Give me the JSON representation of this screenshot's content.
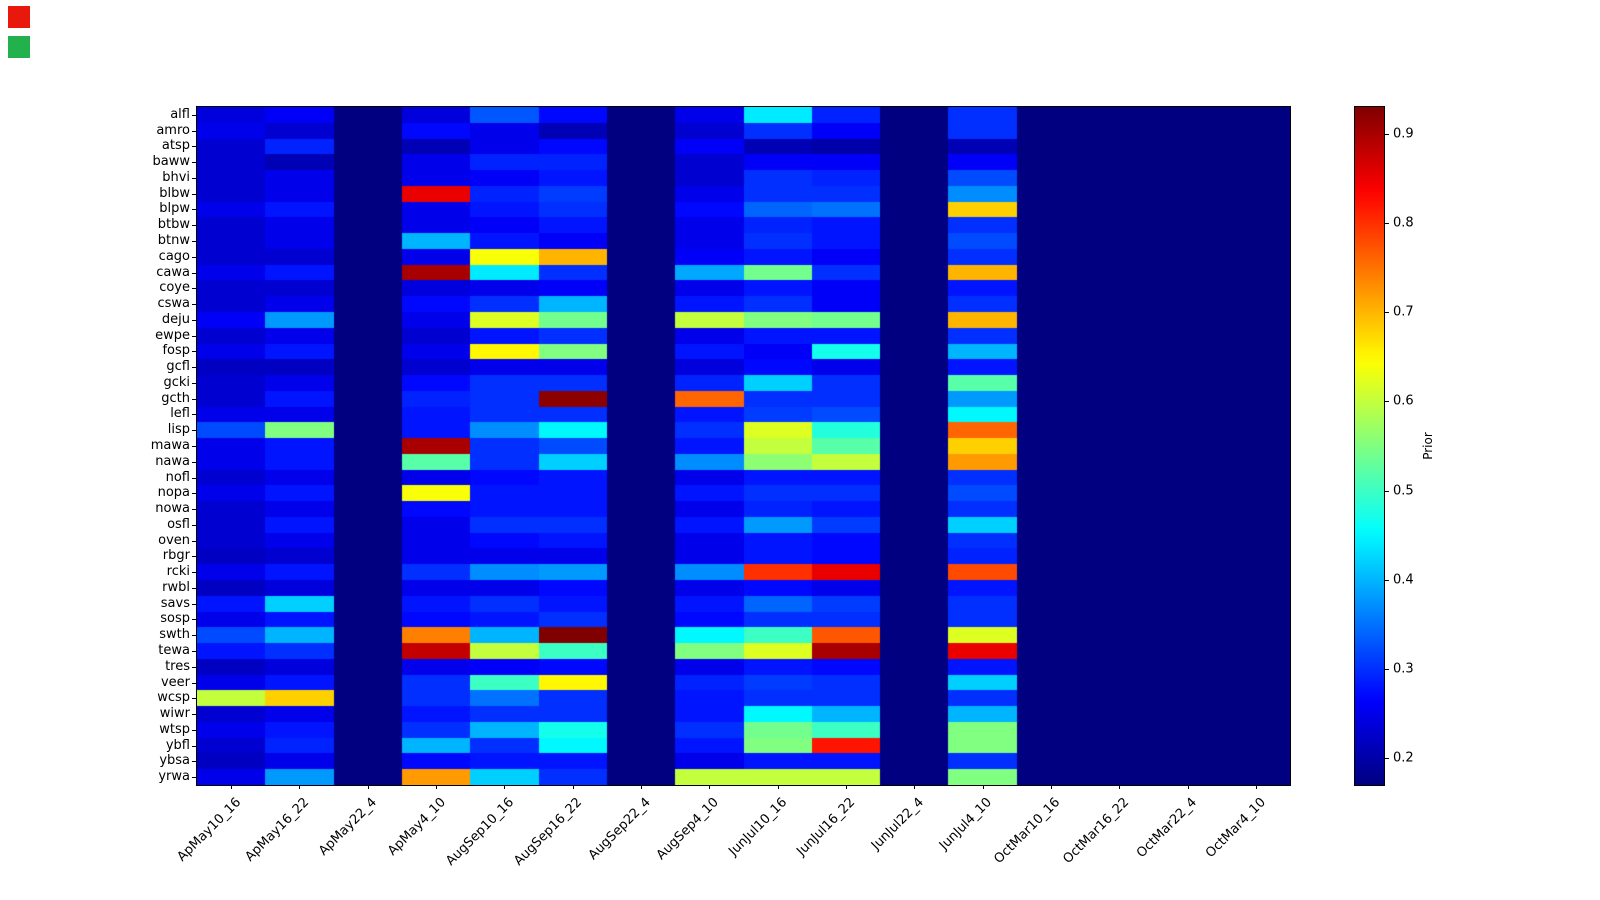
{
  "markers": {
    "red_color": "#e8180c",
    "green_color": "#22b14c"
  },
  "chart_data": {
    "type": "heatmap",
    "title": "",
    "colormap": "jet",
    "vmin": 0.17,
    "vmax": 0.93,
    "colorbar_label": "Prior",
    "colorbar_ticks": [
      0.2,
      0.3,
      0.4,
      0.5,
      0.6,
      0.7,
      0.8,
      0.9
    ],
    "columns": [
      "ApMay10_16",
      "ApMay16_22",
      "ApMay22_4",
      "ApMay4_10",
      "AugSep10_16",
      "AugSep16_22",
      "AugSep22_4",
      "AugSep4_10",
      "JunJul10_16",
      "JunJul16_22",
      "JunJul22_4",
      "JunJul4_10",
      "OctMar10_16",
      "OctMar16_22",
      "OctMar22_4",
      "OctMar4_10"
    ],
    "rows": [
      "alfl",
      "amro",
      "atsp",
      "baww",
      "bhvi",
      "blbw",
      "blpw",
      "btbw",
      "btnw",
      "cago",
      "cawa",
      "coye",
      "cswa",
      "deju",
      "ewpe",
      "fosp",
      "gcfl",
      "gcki",
      "gcth",
      "lefl",
      "lisp",
      "mawa",
      "nawa",
      "nofl",
      "nopa",
      "nowa",
      "osfl",
      "oven",
      "rbgr",
      "rcki",
      "rwbl",
      "savs",
      "sosp",
      "swth",
      "tewa",
      "tres",
      "veer",
      "wcsp",
      "wiwr",
      "wtsp",
      "ybfl",
      "ybsa",
      "yrwa"
    ],
    "values": [
      [
        0.24,
        0.26,
        0.17,
        0.24,
        0.33,
        0.27,
        0.17,
        0.25,
        0.44,
        0.29,
        0.17,
        0.3,
        0.17,
        0.17,
        0.17,
        0.17
      ],
      [
        0.25,
        0.23,
        0.17,
        0.27,
        0.25,
        0.21,
        0.17,
        0.23,
        0.3,
        0.26,
        0.17,
        0.3,
        0.17,
        0.17,
        0.17,
        0.17
      ],
      [
        0.23,
        0.29,
        0.17,
        0.21,
        0.25,
        0.27,
        0.17,
        0.26,
        0.21,
        0.2,
        0.17,
        0.21,
        0.17,
        0.17,
        0.17,
        0.17
      ],
      [
        0.23,
        0.21,
        0.17,
        0.25,
        0.29,
        0.29,
        0.17,
        0.23,
        0.26,
        0.26,
        0.17,
        0.26,
        0.17,
        0.17,
        0.17,
        0.17
      ],
      [
        0.23,
        0.25,
        0.17,
        0.25,
        0.26,
        0.28,
        0.17,
        0.23,
        0.3,
        0.29,
        0.17,
        0.32,
        0.17,
        0.17,
        0.17,
        0.17
      ],
      [
        0.23,
        0.25,
        0.17,
        0.85,
        0.29,
        0.31,
        0.17,
        0.25,
        0.3,
        0.3,
        0.17,
        0.37,
        0.17,
        0.17,
        0.17,
        0.17
      ],
      [
        0.25,
        0.28,
        0.17,
        0.25,
        0.28,
        0.3,
        0.17,
        0.27,
        0.34,
        0.35,
        0.17,
        0.68,
        0.17,
        0.17,
        0.17,
        0.17
      ],
      [
        0.23,
        0.25,
        0.17,
        0.25,
        0.26,
        0.28,
        0.17,
        0.25,
        0.29,
        0.28,
        0.17,
        0.3,
        0.17,
        0.17,
        0.17,
        0.17
      ],
      [
        0.23,
        0.25,
        0.17,
        0.4,
        0.28,
        0.26,
        0.17,
        0.25,
        0.3,
        0.28,
        0.17,
        0.32,
        0.17,
        0.17,
        0.17,
        0.17
      ],
      [
        0.23,
        0.23,
        0.17,
        0.25,
        0.64,
        0.7,
        0.17,
        0.26,
        0.28,
        0.26,
        0.17,
        0.3,
        0.17,
        0.17,
        0.17,
        0.17
      ],
      [
        0.25,
        0.28,
        0.17,
        0.9,
        0.44,
        0.3,
        0.17,
        0.39,
        0.54,
        0.3,
        0.17,
        0.7,
        0.17,
        0.17,
        0.17,
        0.17
      ],
      [
        0.23,
        0.23,
        0.17,
        0.24,
        0.25,
        0.26,
        0.17,
        0.25,
        0.28,
        0.26,
        0.17,
        0.28,
        0.17,
        0.17,
        0.17,
        0.17
      ],
      [
        0.23,
        0.25,
        0.17,
        0.27,
        0.3,
        0.4,
        0.17,
        0.28,
        0.3,
        0.26,
        0.17,
        0.3,
        0.17,
        0.17,
        0.17,
        0.17
      ],
      [
        0.26,
        0.38,
        0.17,
        0.25,
        0.62,
        0.54,
        0.17,
        0.6,
        0.55,
        0.54,
        0.17,
        0.7,
        0.17,
        0.17,
        0.17,
        0.17
      ],
      [
        0.23,
        0.25,
        0.17,
        0.23,
        0.28,
        0.3,
        0.17,
        0.25,
        0.28,
        0.28,
        0.17,
        0.3,
        0.17,
        0.17,
        0.17,
        0.17
      ],
      [
        0.25,
        0.28,
        0.17,
        0.25,
        0.65,
        0.55,
        0.17,
        0.28,
        0.26,
        0.47,
        0.17,
        0.4,
        0.17,
        0.17,
        0.17,
        0.17
      ],
      [
        0.22,
        0.22,
        0.17,
        0.23,
        0.25,
        0.25,
        0.17,
        0.24,
        0.27,
        0.25,
        0.17,
        0.28,
        0.17,
        0.17,
        0.17,
        0.17
      ],
      [
        0.23,
        0.25,
        0.17,
        0.27,
        0.3,
        0.3,
        0.17,
        0.29,
        0.42,
        0.3,
        0.17,
        0.52,
        0.17,
        0.17,
        0.17,
        0.17
      ],
      [
        0.23,
        0.28,
        0.17,
        0.29,
        0.3,
        0.92,
        0.17,
        0.76,
        0.3,
        0.3,
        0.17,
        0.38,
        0.17,
        0.17,
        0.17,
        0.17
      ],
      [
        0.25,
        0.25,
        0.17,
        0.28,
        0.3,
        0.3,
        0.17,
        0.28,
        0.31,
        0.32,
        0.17,
        0.45,
        0.17,
        0.17,
        0.17,
        0.17
      ],
      [
        0.32,
        0.55,
        0.17,
        0.28,
        0.37,
        0.45,
        0.17,
        0.3,
        0.62,
        0.48,
        0.17,
        0.76,
        0.17,
        0.17,
        0.17,
        0.17
      ],
      [
        0.25,
        0.28,
        0.17,
        0.9,
        0.3,
        0.32,
        0.17,
        0.28,
        0.6,
        0.52,
        0.17,
        0.68,
        0.17,
        0.17,
        0.17,
        0.17
      ],
      [
        0.25,
        0.28,
        0.17,
        0.52,
        0.3,
        0.42,
        0.17,
        0.37,
        0.56,
        0.6,
        0.17,
        0.72,
        0.17,
        0.17,
        0.17,
        0.17
      ],
      [
        0.23,
        0.25,
        0.17,
        0.25,
        0.27,
        0.28,
        0.17,
        0.25,
        0.28,
        0.28,
        0.17,
        0.3,
        0.17,
        0.17,
        0.17,
        0.17
      ],
      [
        0.25,
        0.28,
        0.17,
        0.64,
        0.28,
        0.28,
        0.17,
        0.28,
        0.3,
        0.3,
        0.17,
        0.32,
        0.17,
        0.17,
        0.17,
        0.17
      ],
      [
        0.23,
        0.25,
        0.17,
        0.27,
        0.28,
        0.28,
        0.17,
        0.25,
        0.29,
        0.28,
        0.17,
        0.3,
        0.17,
        0.17,
        0.17,
        0.17
      ],
      [
        0.23,
        0.28,
        0.17,
        0.25,
        0.3,
        0.3,
        0.17,
        0.28,
        0.38,
        0.31,
        0.17,
        0.42,
        0.17,
        0.17,
        0.17,
        0.17
      ],
      [
        0.23,
        0.25,
        0.17,
        0.25,
        0.27,
        0.28,
        0.17,
        0.25,
        0.28,
        0.27,
        0.17,
        0.3,
        0.17,
        0.17,
        0.17,
        0.17
      ],
      [
        0.22,
        0.23,
        0.17,
        0.25,
        0.25,
        0.25,
        0.17,
        0.25,
        0.28,
        0.27,
        0.17,
        0.29,
        0.17,
        0.17,
        0.17,
        0.17
      ],
      [
        0.25,
        0.28,
        0.17,
        0.3,
        0.37,
        0.38,
        0.17,
        0.37,
        0.8,
        0.85,
        0.17,
        0.78,
        0.17,
        0.17,
        0.17,
        0.17
      ],
      [
        0.22,
        0.24,
        0.17,
        0.25,
        0.25,
        0.27,
        0.17,
        0.25,
        0.27,
        0.25,
        0.17,
        0.28,
        0.17,
        0.17,
        0.17,
        0.17
      ],
      [
        0.28,
        0.42,
        0.17,
        0.28,
        0.3,
        0.28,
        0.17,
        0.28,
        0.34,
        0.31,
        0.17,
        0.3,
        0.17,
        0.17,
        0.17,
        0.17
      ],
      [
        0.25,
        0.28,
        0.17,
        0.27,
        0.28,
        0.3,
        0.17,
        0.27,
        0.3,
        0.3,
        0.17,
        0.3,
        0.17,
        0.17,
        0.17,
        0.17
      ],
      [
        0.32,
        0.4,
        0.17,
        0.74,
        0.4,
        0.93,
        0.17,
        0.45,
        0.5,
        0.77,
        0.17,
        0.62,
        0.17,
        0.17,
        0.17,
        0.17
      ],
      [
        0.28,
        0.3,
        0.17,
        0.88,
        0.6,
        0.5,
        0.17,
        0.55,
        0.62,
        0.9,
        0.17,
        0.85,
        0.17,
        0.17,
        0.17,
        0.17
      ],
      [
        0.22,
        0.24,
        0.17,
        0.25,
        0.26,
        0.27,
        0.17,
        0.25,
        0.28,
        0.27,
        0.17,
        0.28,
        0.17,
        0.17,
        0.17,
        0.17
      ],
      [
        0.25,
        0.28,
        0.17,
        0.3,
        0.5,
        0.65,
        0.17,
        0.29,
        0.31,
        0.3,
        0.17,
        0.42,
        0.17,
        0.17,
        0.17,
        0.17
      ],
      [
        0.6,
        0.68,
        0.17,
        0.3,
        0.35,
        0.3,
        0.17,
        0.28,
        0.3,
        0.3,
        0.17,
        0.3,
        0.17,
        0.17,
        0.17,
        0.17
      ],
      [
        0.23,
        0.25,
        0.17,
        0.28,
        0.3,
        0.3,
        0.17,
        0.28,
        0.45,
        0.4,
        0.17,
        0.4,
        0.17,
        0.17,
        0.17,
        0.17
      ],
      [
        0.25,
        0.28,
        0.17,
        0.3,
        0.4,
        0.47,
        0.17,
        0.3,
        0.54,
        0.5,
        0.17,
        0.55,
        0.17,
        0.17,
        0.17,
        0.17
      ],
      [
        0.23,
        0.29,
        0.17,
        0.4,
        0.3,
        0.45,
        0.17,
        0.28,
        0.55,
        0.82,
        0.17,
        0.55,
        0.17,
        0.17,
        0.17,
        0.17
      ],
      [
        0.22,
        0.25,
        0.17,
        0.27,
        0.28,
        0.28,
        0.17,
        0.25,
        0.28,
        0.28,
        0.17,
        0.3,
        0.17,
        0.17,
        0.17,
        0.17
      ],
      [
        0.25,
        0.38,
        0.17,
        0.72,
        0.42,
        0.3,
        0.17,
        0.6,
        0.6,
        0.6,
        0.17,
        0.55,
        0.17,
        0.17,
        0.17,
        0.17
      ]
    ],
    "layout": {
      "grid": false,
      "legend": "colorbar-right"
    }
  }
}
